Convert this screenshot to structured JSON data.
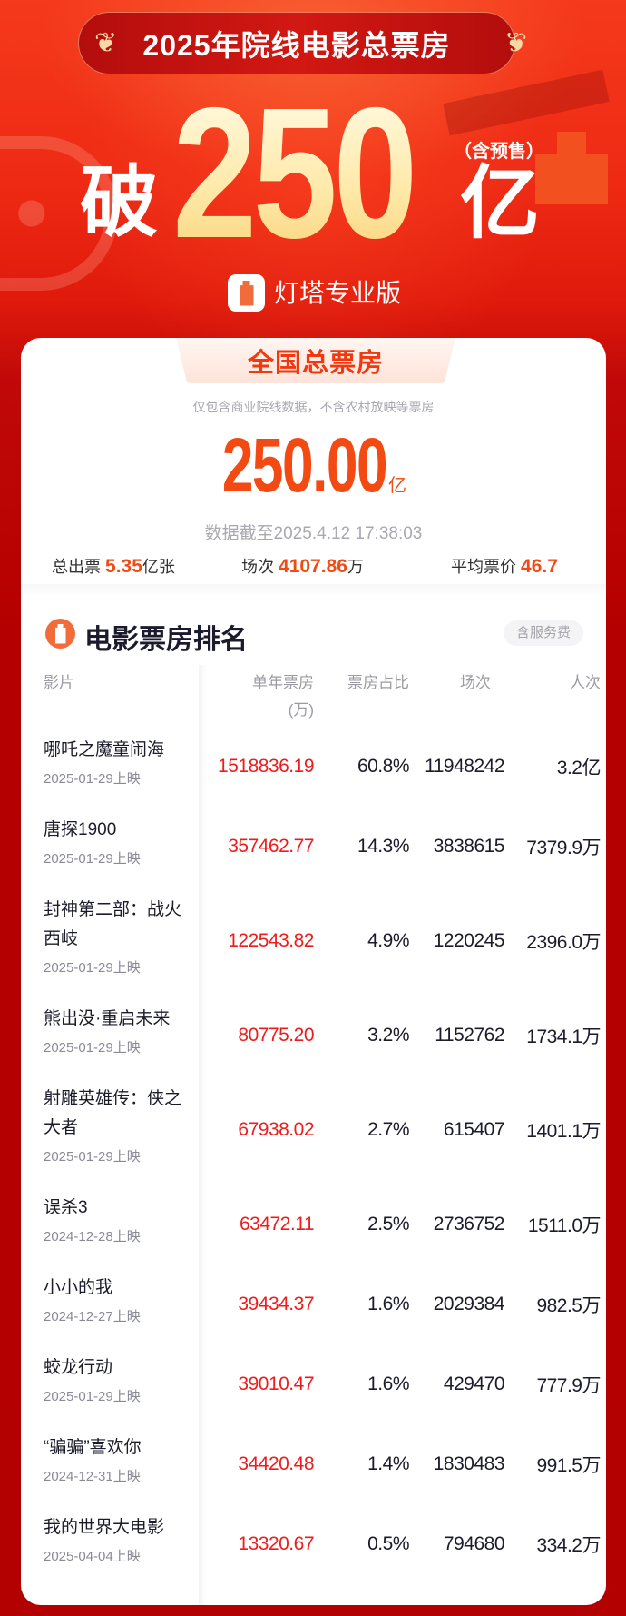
{
  "banner": {
    "title": "2025年院线电影总票房",
    "prefix": "破",
    "amount": "250",
    "unit": "亿",
    "note": "（含预售）",
    "brand": "灯塔专业版"
  },
  "summary": {
    "tab": "全国总票房",
    "subtitle": "仅包含商业院线数据，不含农村放映等票房",
    "total": "250.00",
    "total_unit": "亿",
    "timestamp": "数据截至2025.4.12 17:38:03",
    "stats": [
      {
        "label": "总出票",
        "value": "5.35",
        "unit": "亿张"
      },
      {
        "label": "场次",
        "value": "4107.86",
        "unit": "万"
      },
      {
        "label": "平均票价",
        "value": "46.7",
        "unit": ""
      }
    ]
  },
  "ranking": {
    "title": "电影票房排名",
    "badge": "含服务费",
    "headers": {
      "film": "影片",
      "box": "单年票房",
      "box_unit": "(万)",
      "share": "票房占比",
      "shows": "场次",
      "audience": "人次"
    },
    "rows": [
      {
        "name": "哪吒之魔童闹海",
        "date": "2025-01-29上映",
        "box": "1518836.19",
        "share": "60.8%",
        "shows": "11948242",
        "audience": "3.2亿"
      },
      {
        "name": "唐探1900",
        "date": "2025-01-29上映",
        "box": "357462.77",
        "share": "14.3%",
        "shows": "3838615",
        "audience": "7379.9万"
      },
      {
        "name": "封神第二部：战火西岐",
        "date": "2025-01-29上映",
        "box": "122543.82",
        "share": "4.9%",
        "shows": "1220245",
        "audience": "2396.0万"
      },
      {
        "name": "熊出没·重启未来",
        "date": "2025-01-29上映",
        "box": "80775.20",
        "share": "3.2%",
        "shows": "1152762",
        "audience": "1734.1万"
      },
      {
        "name": "射雕英雄传：侠之大者",
        "date": "2025-01-29上映",
        "box": "67938.02",
        "share": "2.7%",
        "shows": "615407",
        "audience": "1401.1万"
      },
      {
        "name": "误杀3",
        "date": "2024-12-28上映",
        "box": "63472.11",
        "share": "2.5%",
        "shows": "2736752",
        "audience": "1511.0万"
      },
      {
        "name": "小小的我",
        "date": "2024-12-27上映",
        "box": "39434.37",
        "share": "1.6%",
        "shows": "2029384",
        "audience": "982.5万"
      },
      {
        "name": "蛟龙行动",
        "date": "2025-01-29上映",
        "box": "39010.47",
        "share": "1.6%",
        "shows": "429470",
        "audience": "777.9万"
      },
      {
        "name": "“骗骗”喜欢你",
        "date": "2024-12-31上映",
        "box": "34420.48",
        "share": "1.4%",
        "shows": "1830483",
        "audience": "991.5万"
      },
      {
        "name": "我的世界大电影",
        "date": "2025-04-04上映",
        "box": "13320.67",
        "share": "0.5%",
        "shows": "794680",
        "audience": "334.2万"
      }
    ]
  },
  "colors": {
    "accent": "#f24a12",
    "box_office": "#ee1c1c",
    "banner_red": "#e01a0c",
    "icon_orange": "#f26b3a"
  }
}
